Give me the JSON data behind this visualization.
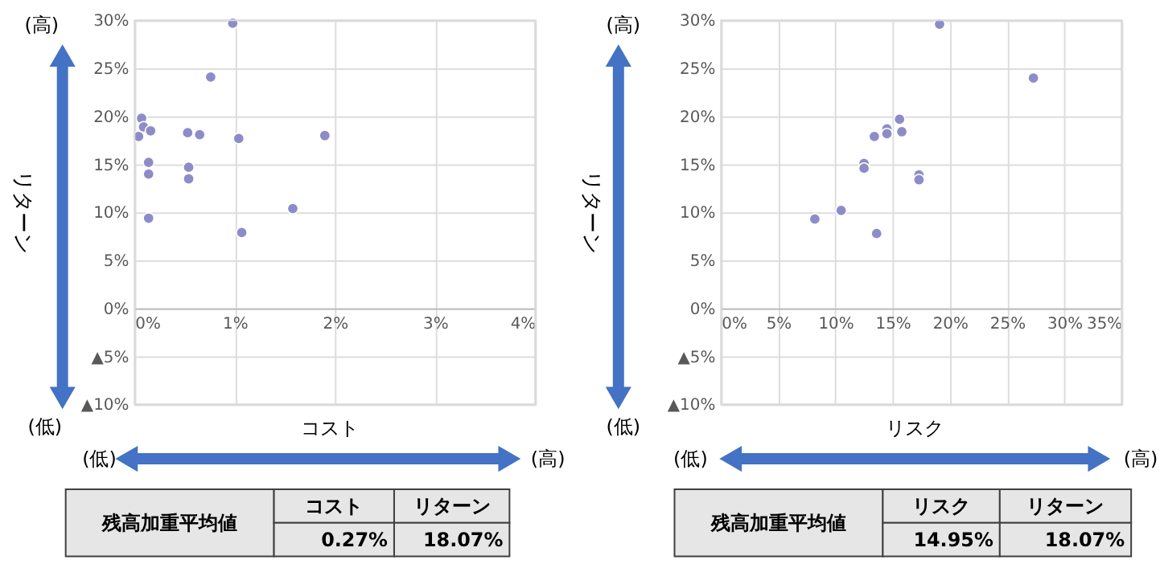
{
  "chart_data": [
    {
      "type": "scatter",
      "xlabel": "コスト",
      "ylabel": "リターン",
      "marker": "circle",
      "grid": true,
      "xlim": [
        0,
        4
      ],
      "ylim": [
        -10,
        30
      ],
      "xticks": [
        {
          "value": 0,
          "label": "0%"
        },
        {
          "value": 1,
          "label": "1%"
        },
        {
          "value": 2,
          "label": "2%"
        },
        {
          "value": 3,
          "label": "3%"
        },
        {
          "value": 4,
          "label": "4%"
        }
      ],
      "yticks": [
        {
          "value": -10,
          "label": "▲10%"
        },
        {
          "value": -5,
          "label": "▲5%"
        },
        {
          "value": 0,
          "label": "0%"
        },
        {
          "value": 5,
          "label": "5%"
        },
        {
          "value": 10,
          "label": "10%"
        },
        {
          "value": 15,
          "label": "15%"
        },
        {
          "value": 20,
          "label": "20%"
        },
        {
          "value": 25,
          "label": "25%"
        },
        {
          "value": 30,
          "label": "30%"
        }
      ],
      "series": [
        {
          "color": "#8e8cc8",
          "x": [
            0.98,
            0.76,
            0.07,
            0.09,
            0.04,
            0.16,
            0.53,
            0.65,
            1.04,
            1.9,
            0.14,
            0.14,
            0.54,
            0.54,
            0.14,
            1.58,
            1.07
          ],
          "values": [
            29.7,
            24.1,
            19.8,
            18.9,
            17.9,
            18.5,
            18.3,
            18.1,
            17.7,
            18.0,
            15.2,
            14.0,
            14.7,
            13.5,
            9.4,
            10.4,
            7.9
          ]
        }
      ],
      "annotations": [
        "(高)",
        "(低)",
        "(低)",
        "(高)",
        "残高加重平均値",
        "コスト",
        "リターン",
        "0.27%",
        "18.07%"
      ]
    },
    {
      "type": "scatter",
      "xlabel": "リスク",
      "ylabel": "リターン",
      "marker": "circle",
      "grid": true,
      "xlim": [
        0,
        35
      ],
      "ylim": [
        -10,
        30
      ],
      "xticks": [
        {
          "value": 0,
          "label": "0%"
        },
        {
          "value": 5,
          "label": "5%"
        },
        {
          "value": 10,
          "label": "10%"
        },
        {
          "value": 15,
          "label": "15%"
        },
        {
          "value": 20,
          "label": "20%"
        },
        {
          "value": 25,
          "label": "25%"
        },
        {
          "value": 30,
          "label": "30%"
        },
        {
          "value": 35,
          "label": "35%"
        }
      ],
      "yticks": [
        {
          "value": -10,
          "label": "▲10%"
        },
        {
          "value": -5,
          "label": "▲5%"
        },
        {
          "value": 0,
          "label": "0%"
        },
        {
          "value": 5,
          "label": "5%"
        },
        {
          "value": 10,
          "label": "10%"
        },
        {
          "value": 15,
          "label": "15%"
        },
        {
          "value": 20,
          "label": "20%"
        },
        {
          "value": 25,
          "label": "25%"
        },
        {
          "value": 30,
          "label": "30%"
        }
      ],
      "series": [
        {
          "color": "#8e8cc8",
          "x": [
            19.1,
            27.3,
            15.6,
            14.5,
            14.5,
            13.4,
            15.8,
            12.5,
            12.5,
            17.3,
            17.3,
            10.5,
            8.2,
            13.6
          ],
          "values": [
            29.6,
            24.0,
            19.7,
            18.7,
            18.2,
            17.9,
            18.4,
            15.1,
            14.6,
            13.9,
            13.4,
            10.2,
            9.3,
            7.8
          ]
        }
      ],
      "annotations": [
        "(高)",
        "(低)",
        "(低)",
        "(高)",
        "残高加重平均値",
        "リスク",
        "リターン",
        "14.95%",
        "18.07%"
      ]
    }
  ]
}
